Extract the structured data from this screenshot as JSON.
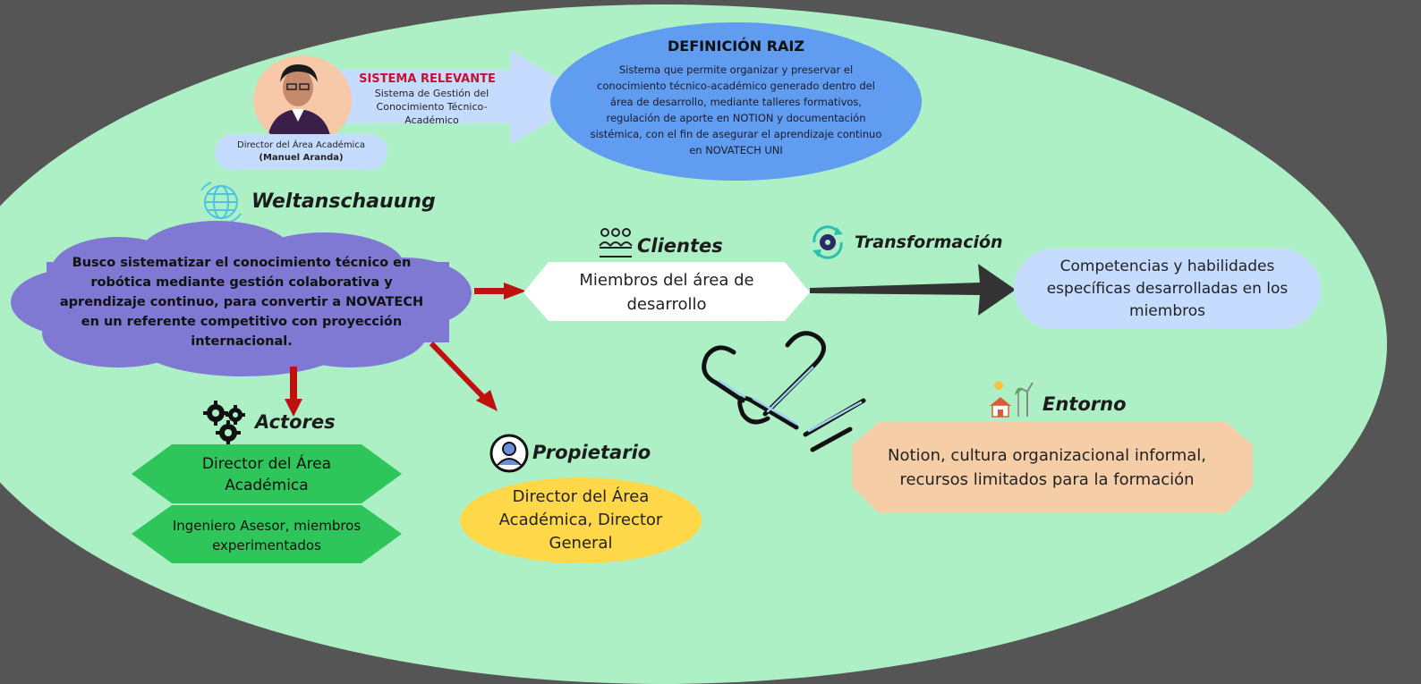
{
  "sistema": {
    "title": "SISTEMA RELEVANTE",
    "desc": "Sistema de Gestión del Conocimiento Técnico-Académico",
    "person_role": "Director del Área Académica",
    "person_name": "(Manuel Aranda)"
  },
  "definicion": {
    "title": "DEFINICIÓN RAIZ",
    "text": "Sistema que permite organizar y preservar el conocimiento técnico-académico generado dentro del área de desarrollo, mediante talleres formativos, regulación de aporte en NOTION y documentación sistémica, con el fin de asegurar el aprendizaje continuo en NOVATECH UNI"
  },
  "weltanschauung": {
    "title": "Weltanschauung",
    "text": "Busco sistematizar el conocimiento técnico en robótica mediante gestión colaborativa y aprendizaje continuo, para convertir a NOVATECH en un referente competitivo con proyección internacional."
  },
  "clientes": {
    "title": "Clientes",
    "text": "Miembros del área de desarrollo"
  },
  "transformacion": {
    "title": "Transformación",
    "text": "Competencias y habilidades específicas desarrolladas en los miembros"
  },
  "actores": {
    "title": "Actores",
    "item1": "Director del Área Académica",
    "item2": "Ingeniero Asesor, miembros experimentados"
  },
  "propietario": {
    "title": "Propietario",
    "text": "Director del Área Académica, Director General"
  },
  "entorno": {
    "title": "Entorno",
    "text": "Notion, cultura organizacional informal, recursos limitados para la formación"
  },
  "colors": {
    "background": "#555555",
    "ellipse": "#aef0c6",
    "definicion": "#609cf0",
    "cloud": "#8079d4",
    "arrow_red": "#c01010",
    "arrow_dark": "#333333",
    "actor_green": "#2ec55a",
    "propietario": "#ffd84a",
    "entorno": "#f5cea8",
    "transform": "#c6dcff"
  }
}
